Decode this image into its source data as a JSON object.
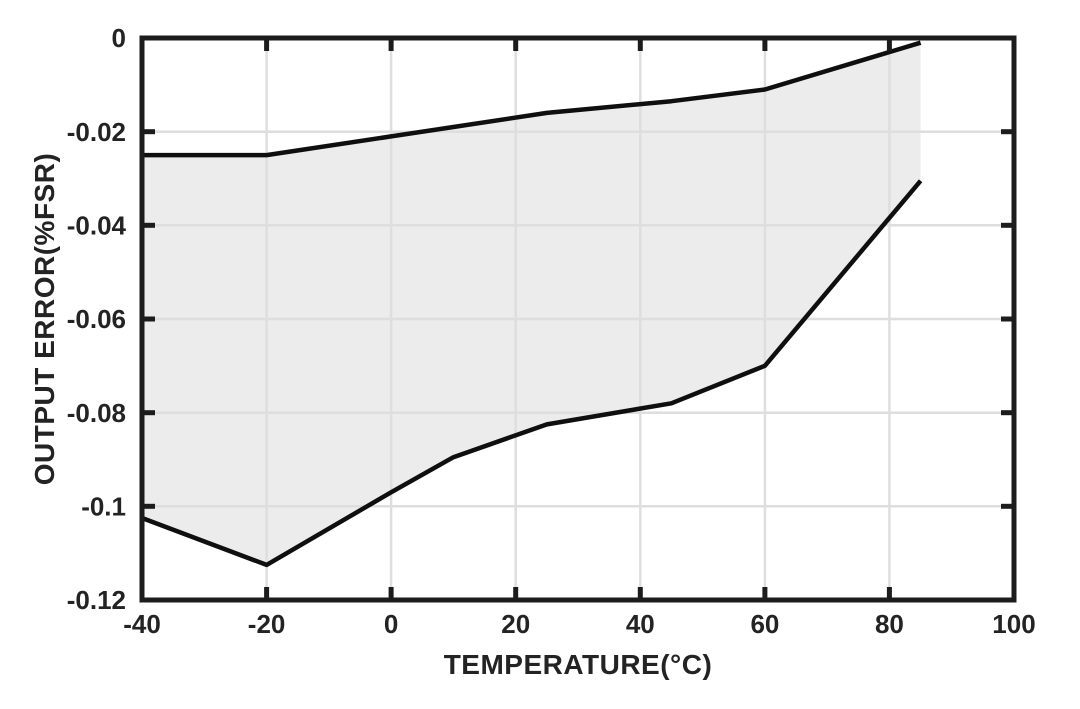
{
  "figure": {
    "background": "#ffffff"
  },
  "chart_data": {
    "type": "area",
    "title": "",
    "xlabel": "TEMPERATURE(°C)",
    "ylabel": "OUTPUT ERROR(%FSR)",
    "xlim": [
      -40,
      100
    ],
    "ylim": [
      -0.12,
      0
    ],
    "x_ticks": [
      -40,
      -20,
      0,
      20,
      40,
      60,
      80,
      100
    ],
    "x_tick_labels": [
      "-40",
      "-20",
      "0",
      "20",
      "40",
      "60",
      "80",
      "100"
    ],
    "y_ticks": [
      0,
      -0.02,
      -0.04,
      -0.06,
      -0.08,
      -0.1,
      -0.12
    ],
    "y_tick_labels": [
      "0",
      "-0.02",
      "-0.04",
      "-0.06",
      "-0.08",
      "-0.1",
      "-0.12"
    ],
    "grid": true,
    "legend": "none",
    "x": [
      -40,
      -20,
      0,
      10,
      25,
      45,
      60,
      85
    ],
    "series": [
      {
        "name": "upper-bound",
        "values": [
          -0.025,
          -0.025,
          -0.021,
          -0.019,
          -0.016,
          -0.0135,
          -0.011,
          -0.001
        ]
      },
      {
        "name": "lower-bound",
        "values": [
          -0.1025,
          -0.1125,
          -0.097,
          -0.0895,
          -0.0825,
          -0.078,
          -0.07,
          -0.0305
        ]
      }
    ],
    "fill_between_series": true,
    "colors": {
      "line": "#0f0f0f",
      "fill": "#ececec",
      "grid": "#dedede",
      "axis": "#1c1c1c",
      "text": "#232323"
    }
  }
}
